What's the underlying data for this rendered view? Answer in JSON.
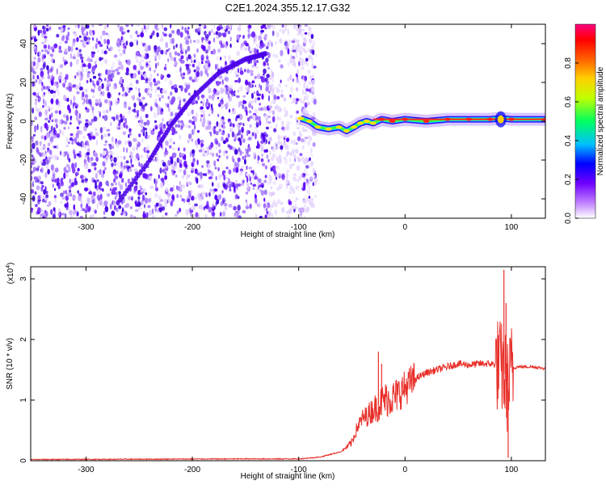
{
  "title": "C2E1.2024.355.12.17.G32",
  "chart_data": [
    {
      "type": "heatmap",
      "name": "spectrogram",
      "xlabel": "Height of straight line (km)",
      "ylabel": "Frequency (Hz)",
      "xlim": [
        -352,
        132
      ],
      "ylim": [
        -50,
        50
      ],
      "xticks": [
        "-300",
        "-200",
        "-100",
        "0",
        "100"
      ],
      "yticks": [
        "-40",
        "-20",
        "0",
        "20",
        "40"
      ],
      "colorbar": {
        "label": "Normalized spectral amplitude",
        "ticks": [
          "0.0",
          "0.2",
          "0.4",
          "0.6",
          "0.8"
        ],
        "range": [
          0,
          1
        ],
        "colormap": [
          "#ffffff",
          "#c080ff",
          "#7000ff",
          "#0000ff",
          "#00c0ff",
          "#00ff60",
          "#c0ff00",
          "#ffd000",
          "#ff6000",
          "#ff0000",
          "#ff0080"
        ]
      },
      "noise_extent_x": [
        -352,
        -88
      ],
      "tone_points": [
        {
          "x": -98,
          "y": 1.5
        },
        {
          "x": -90,
          "y": 0
        },
        {
          "x": -82,
          "y": -3
        },
        {
          "x": -72,
          "y": -4
        },
        {
          "x": -62,
          "y": -3
        },
        {
          "x": -55,
          "y": -5
        },
        {
          "x": -48,
          "y": -3
        },
        {
          "x": -42,
          "y": -1
        },
        {
          "x": -36,
          "y": 0
        },
        {
          "x": -30,
          "y": -1
        },
        {
          "x": -22,
          "y": 1
        },
        {
          "x": -12,
          "y": 0
        },
        {
          "x": 0,
          "y": 1
        },
        {
          "x": 20,
          "y": 0
        },
        {
          "x": 40,
          "y": 1
        },
        {
          "x": 60,
          "y": 1
        },
        {
          "x": 80,
          "y": 1
        },
        {
          "x": 90,
          "y": 1.5
        },
        {
          "x": 100,
          "y": 1
        },
        {
          "x": 132,
          "y": 1
        }
      ],
      "chirp_points": [
        {
          "x": -270,
          "y": -42
        },
        {
          "x": -240,
          "y": -20
        },
        {
          "x": -220,
          "y": -2
        },
        {
          "x": -200,
          "y": 12
        },
        {
          "x": -175,
          "y": 25
        },
        {
          "x": -150,
          "y": 32
        },
        {
          "x": -130,
          "y": 35
        }
      ]
    },
    {
      "type": "line",
      "name": "snr",
      "xlabel": "Height of straight line (km)",
      "ylabel": "SNR (10 * v/v)",
      "y_multiplier": "(x10",
      "y_multiplier_exp": "4",
      "y_multiplier_close": ")",
      "xlim": [
        -352,
        132
      ],
      "ylim": [
        0,
        3.2
      ],
      "xticks": [
        "-300",
        "-200",
        "-100",
        "0",
        "100"
      ],
      "yticks": [
        "0",
        "1",
        "2",
        "3"
      ],
      "color": "#e8302a",
      "series": [
        {
          "x": [
            -352,
            -150,
            -100,
            -80,
            -60,
            -50,
            -45,
            -40,
            -35,
            -30,
            -25,
            -20,
            -10,
            0,
            10,
            20,
            30,
            40,
            50,
            60,
            70,
            80,
            88,
            92,
            95,
            97,
            100,
            105,
            110,
            120,
            132
          ],
          "y": [
            0.02,
            0.03,
            0.03,
            0.06,
            0.15,
            0.3,
            0.55,
            0.7,
            0.75,
            0.85,
            0.9,
            1.0,
            1.05,
            1.2,
            1.35,
            1.45,
            1.5,
            1.55,
            1.6,
            1.58,
            1.6,
            1.6,
            1.58,
            1.5,
            1.3,
            1.2,
            1.5,
            1.55,
            1.55,
            1.55,
            1.52
          ]
        }
      ],
      "spikes": [
        {
          "x": -25,
          "y": 1.8
        },
        {
          "x": -22,
          "y": 1.6
        },
        {
          "x": 93,
          "y": 3.15
        },
        {
          "x": 95,
          "y": 2.6
        },
        {
          "x": 97,
          "y": 0.05
        }
      ]
    }
  ]
}
